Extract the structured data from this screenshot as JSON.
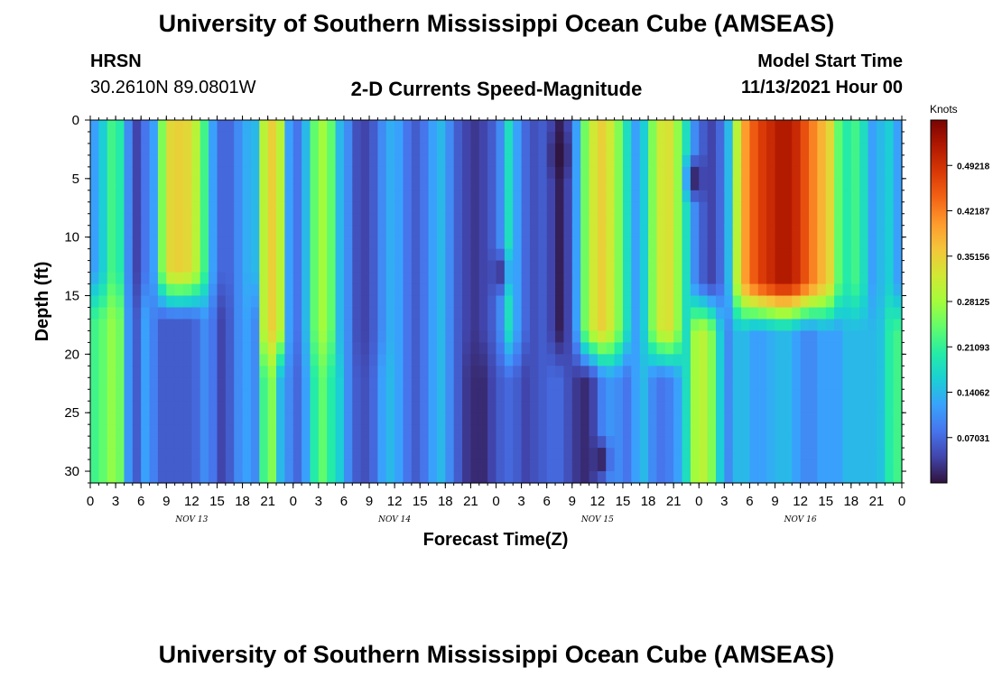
{
  "header": {
    "title": "University of Southern Mississippi Ocean Cube (AMSEAS)",
    "station": "HRSN",
    "coords": "30.2610N  89.0801W",
    "subtitle": "2-D Currents Speed-Magnitude",
    "model_start_label": "Model Start Time",
    "model_start_value": "11/13/2021 Hour 00"
  },
  "footer": {
    "title": "University of Southern Mississippi Ocean Cube (AMSEAS)"
  },
  "colors": {
    "stops": [
      "#30123b",
      "#4145ab",
      "#4675ed",
      "#39a2fc",
      "#1bcfd4",
      "#24eca6",
      "#61fc6c",
      "#a4fc3b",
      "#d1e834",
      "#f3c63a",
      "#fe9b2d",
      "#f36315",
      "#d93806",
      "#b11901",
      "#7a0402"
    ]
  },
  "chart_data": {
    "type": "heatmap",
    "title": "2-D Currents Speed-Magnitude",
    "xlabel": "Forecast Time(Z)",
    "ylabel": "Depth (ft)",
    "x_hours_range": [
      0,
      96
    ],
    "x_tick_hours": [
      0,
      3,
      6,
      9,
      12,
      15,
      18,
      21,
      24,
      27,
      30,
      33,
      36,
      39,
      42,
      45,
      48,
      51,
      54,
      57,
      60,
      63,
      66,
      69,
      72,
      75,
      78,
      81,
      84,
      87,
      90,
      93,
      96
    ],
    "x_tick_labels": [
      "0",
      "3",
      "6",
      "9",
      "12",
      "15",
      "18",
      "21",
      "0",
      "3",
      "6",
      "9",
      "12",
      "15",
      "18",
      "21",
      "0",
      "3",
      "6",
      "9",
      "12",
      "15",
      "18",
      "21",
      "0",
      "3",
      "6",
      "9",
      "12",
      "15",
      "18",
      "21",
      "0"
    ],
    "date_labels": [
      {
        "label": "NOV 13",
        "hour": 12
      },
      {
        "label": "NOV 14",
        "hour": 36
      },
      {
        "label": "NOV 15",
        "hour": 60
      },
      {
        "label": "NOV 16",
        "hour": 84
      }
    ],
    "y_range": [
      0,
      31
    ],
    "y_ticks": [
      0,
      5,
      10,
      15,
      20,
      25,
      30
    ],
    "y_tick_labels": [
      "0",
      "5",
      "10",
      "15",
      "20",
      "25",
      "30"
    ],
    "colorbar": {
      "units": "Knots",
      "range": [
        0,
        0.5625
      ],
      "labels": [
        "0.07031",
        "0.14062",
        "0.21093",
        "0.28125",
        "0.35156",
        "0.42187",
        "0.49218"
      ],
      "label_values": [
        0.07031,
        0.14062,
        0.21093,
        0.28125,
        0.35156,
        0.42187,
        0.49218
      ]
    },
    "time_columns": [
      {
        "hour": 0.5,
        "top": 0.12,
        "bot": 0.22,
        "split": 15
      },
      {
        "hour": 1.5,
        "top": 0.16,
        "bot": 0.24,
        "split": 15
      },
      {
        "hour": 2.5,
        "top": 0.22,
        "bot": 0.27,
        "split": 15
      },
      {
        "hour": 3.5,
        "top": 0.2,
        "bot": 0.25,
        "split": 15
      },
      {
        "hour": 4.5,
        "top": 0.1,
        "bot": 0.11,
        "split": 15
      },
      {
        "hour": 5.5,
        "top": 0.04,
        "bot": 0.06,
        "split": 15
      },
      {
        "hour": 6.5,
        "top": 0.08,
        "bot": 0.12,
        "split": 15
      },
      {
        "hour": 7.5,
        "top": 0.12,
        "bot": 0.09,
        "split": 15
      },
      {
        "hour": 8.5,
        "top": 0.26,
        "bot": 0.06,
        "split": 15
      },
      {
        "hour": 9.5,
        "top": 0.34,
        "bot": 0.06,
        "split": 15
      },
      {
        "hour": 10.5,
        "top": 0.35,
        "bot": 0.06,
        "split": 15
      },
      {
        "hour": 11.5,
        "top": 0.34,
        "bot": 0.06,
        "split": 15
      },
      {
        "hour": 12.5,
        "top": 0.3,
        "bot": 0.07,
        "split": 15
      },
      {
        "hour": 13.5,
        "top": 0.22,
        "bot": 0.1,
        "split": 15
      },
      {
        "hour": 14.5,
        "top": 0.12,
        "bot": 0.08,
        "split": 15
      },
      {
        "hour": 15.5,
        "top": 0.07,
        "bot": 0.04,
        "split": 15
      },
      {
        "hour": 16.5,
        "top": 0.07,
        "bot": 0.06,
        "split": 15
      },
      {
        "hour": 17.5,
        "top": 0.1,
        "bot": 0.1,
        "split": 15
      },
      {
        "hour": 18.5,
        "top": 0.13,
        "bot": 0.12,
        "split": 15
      },
      {
        "hour": 19.5,
        "top": 0.14,
        "bot": 0.1,
        "split": 15
      },
      {
        "hour": 20.5,
        "top": 0.3,
        "bot": 0.22,
        "split": 20
      },
      {
        "hour": 21.5,
        "top": 0.35,
        "bot": 0.26,
        "split": 20
      },
      {
        "hour": 22.5,
        "top": 0.3,
        "bot": 0.14,
        "split": 20
      },
      {
        "hour": 23.5,
        "top": 0.12,
        "bot": 0.1,
        "split": 20
      },
      {
        "hour": 24.5,
        "top": 0.08,
        "bot": 0.07,
        "split": 20
      },
      {
        "hour": 25.5,
        "top": 0.14,
        "bot": 0.12,
        "split": 20
      },
      {
        "hour": 26.5,
        "top": 0.24,
        "bot": 0.2,
        "split": 20
      },
      {
        "hour": 27.5,
        "top": 0.28,
        "bot": 0.24,
        "split": 20
      },
      {
        "hour": 28.5,
        "top": 0.24,
        "bot": 0.2,
        "split": 20
      },
      {
        "hour": 29.5,
        "top": 0.14,
        "bot": 0.16,
        "split": 20
      },
      {
        "hour": 30.5,
        "top": 0.1,
        "bot": 0.1,
        "split": 20
      },
      {
        "hour": 31.5,
        "top": 0.05,
        "bot": 0.06,
        "split": 20
      },
      {
        "hour": 32.5,
        "top": 0.04,
        "bot": 0.05,
        "split": 20
      },
      {
        "hour": 33.5,
        "top": 0.06,
        "bot": 0.07,
        "split": 20
      },
      {
        "hour": 34.5,
        "top": 0.1,
        "bot": 0.12,
        "split": 20
      },
      {
        "hour": 35.5,
        "top": 0.13,
        "bot": 0.14,
        "split": 20
      },
      {
        "hour": 36.5,
        "top": 0.12,
        "bot": 0.12,
        "split": 20
      },
      {
        "hour": 37.5,
        "top": 0.08,
        "bot": 0.08,
        "split": 20
      },
      {
        "hour": 38.5,
        "top": 0.06,
        "bot": 0.06,
        "split": 20
      },
      {
        "hour": 39.5,
        "top": 0.08,
        "bot": 0.08,
        "split": 20
      },
      {
        "hour": 40.5,
        "top": 0.12,
        "bot": 0.12,
        "split": 20
      },
      {
        "hour": 41.5,
        "top": 0.14,
        "bot": 0.14,
        "split": 20
      },
      {
        "hour": 42.5,
        "top": 0.1,
        "bot": 0.1,
        "split": 20
      },
      {
        "hour": 43.5,
        "top": 0.06,
        "bot": 0.06,
        "split": 20
      },
      {
        "hour": 44.5,
        "top": 0.04,
        "bot": 0.03,
        "split": 20
      },
      {
        "hour": 45.5,
        "top": 0.03,
        "bot": 0.02,
        "split": 20
      },
      {
        "hour": 46.5,
        "top": 0.04,
        "bot": 0.02,
        "split": 20
      },
      {
        "hour": 47.5,
        "top": 0.06,
        "bot": 0.04,
        "split": 20
      },
      {
        "hour": 48.5,
        "top": 0.1,
        "bot": 0.06,
        "split": 20
      },
      {
        "hour": 49.5,
        "top": 0.18,
        "bot": 0.07,
        "split": 20
      },
      {
        "hour": 50.5,
        "top": 0.12,
        "bot": 0.06,
        "split": 20
      },
      {
        "hour": 51.5,
        "top": 0.07,
        "bot": 0.04,
        "split": 20
      },
      {
        "hour": 52.5,
        "top": 0.05,
        "bot": 0.05,
        "split": 20
      },
      {
        "hour": 53.5,
        "top": 0.06,
        "bot": 0.06,
        "split": 20
      },
      {
        "hour": 54.5,
        "top": 0.04,
        "bot": 0.07,
        "split": 20
      },
      {
        "hour": 55.5,
        "top": 0.01,
        "bot": 0.07,
        "split": 20
      },
      {
        "hour": 56.5,
        "top": 0.04,
        "bot": 0.05,
        "split": 20
      },
      {
        "hour": 57.5,
        "top": 0.12,
        "bot": 0.03,
        "split": 20
      },
      {
        "hour": 58.5,
        "top": 0.25,
        "bot": 0.02,
        "split": 20
      },
      {
        "hour": 59.5,
        "top": 0.32,
        "bot": 0.04,
        "split": 20
      },
      {
        "hour": 60.5,
        "top": 0.35,
        "bot": 0.09,
        "split": 20
      },
      {
        "hour": 61.5,
        "top": 0.32,
        "bot": 0.11,
        "split": 20
      },
      {
        "hour": 62.5,
        "top": 0.26,
        "bot": 0.1,
        "split": 20
      },
      {
        "hour": 63.5,
        "top": 0.18,
        "bot": 0.08,
        "split": 20
      },
      {
        "hour": 64.5,
        "top": 0.12,
        "bot": 0.12,
        "split": 20
      },
      {
        "hour": 65.5,
        "top": 0.16,
        "bot": 0.14,
        "split": 20
      },
      {
        "hour": 66.5,
        "top": 0.26,
        "bot": 0.1,
        "split": 20
      },
      {
        "hour": 67.5,
        "top": 0.32,
        "bot": 0.08,
        "split": 20
      },
      {
        "hour": 68.5,
        "top": 0.33,
        "bot": 0.09,
        "split": 20
      },
      {
        "hour": 69.5,
        "top": 0.27,
        "bot": 0.12,
        "split": 20
      },
      {
        "hour": 70.5,
        "top": 0.18,
        "bot": 0.18,
        "split": 16
      },
      {
        "hour": 71.5,
        "top": 0.1,
        "bot": 0.28,
        "split": 16
      },
      {
        "hour": 72.5,
        "top": 0.06,
        "bot": 0.3,
        "split": 16
      },
      {
        "hour": 73.5,
        "top": 0.04,
        "bot": 0.26,
        "split": 16
      },
      {
        "hour": 74.5,
        "top": 0.07,
        "bot": 0.16,
        "split": 16
      },
      {
        "hour": 75.5,
        "top": 0.14,
        "bot": 0.1,
        "split": 16
      },
      {
        "hour": 76.5,
        "top": 0.3,
        "bot": 0.14,
        "split": 16
      },
      {
        "hour": 77.5,
        "top": 0.4,
        "bot": 0.14,
        "split": 16
      },
      {
        "hour": 78.5,
        "top": 0.45,
        "bot": 0.12,
        "split": 16
      },
      {
        "hour": 79.5,
        "top": 0.48,
        "bot": 0.12,
        "split": 16
      },
      {
        "hour": 80.5,
        "top": 0.5,
        "bot": 0.13,
        "split": 16
      },
      {
        "hour": 81.5,
        "top": 0.52,
        "bot": 0.14,
        "split": 16
      },
      {
        "hour": 82.5,
        "top": 0.52,
        "bot": 0.14,
        "split": 16
      },
      {
        "hour": 83.5,
        "top": 0.5,
        "bot": 0.12,
        "split": 16
      },
      {
        "hour": 84.5,
        "top": 0.46,
        "bot": 0.1,
        "split": 16
      },
      {
        "hour": 85.5,
        "top": 0.42,
        "bot": 0.1,
        "split": 16
      },
      {
        "hour": 86.5,
        "top": 0.38,
        "bot": 0.12,
        "split": 16
      },
      {
        "hour": 87.5,
        "top": 0.34,
        "bot": 0.12,
        "split": 16
      },
      {
        "hour": 88.5,
        "top": 0.24,
        "bot": 0.12,
        "split": 16
      },
      {
        "hour": 89.5,
        "top": 0.2,
        "bot": 0.14,
        "split": 16
      },
      {
        "hour": 90.5,
        "top": 0.22,
        "bot": 0.14,
        "split": 16
      },
      {
        "hour": 91.5,
        "top": 0.18,
        "bot": 0.14,
        "split": 16
      },
      {
        "hour": 92.5,
        "top": 0.12,
        "bot": 0.14,
        "split": 16
      },
      {
        "hour": 93.5,
        "top": 0.14,
        "bot": 0.15,
        "split": 16
      },
      {
        "hour": 94.5,
        "top": 0.16,
        "bot": 0.2,
        "split": 16
      },
      {
        "hour": 95.5,
        "top": 0.12,
        "bot": 0.22,
        "split": 16
      }
    ],
    "minima": [
      {
        "hour": 55.5,
        "depth": 3,
        "value": 0.0
      },
      {
        "hour": 60.5,
        "depth": 29,
        "value": 0.0
      },
      {
        "hour": 71.5,
        "depth": 5,
        "value": 0.0
      },
      {
        "hour": 48.5,
        "depth": 13,
        "value": 0.02
      }
    ]
  }
}
